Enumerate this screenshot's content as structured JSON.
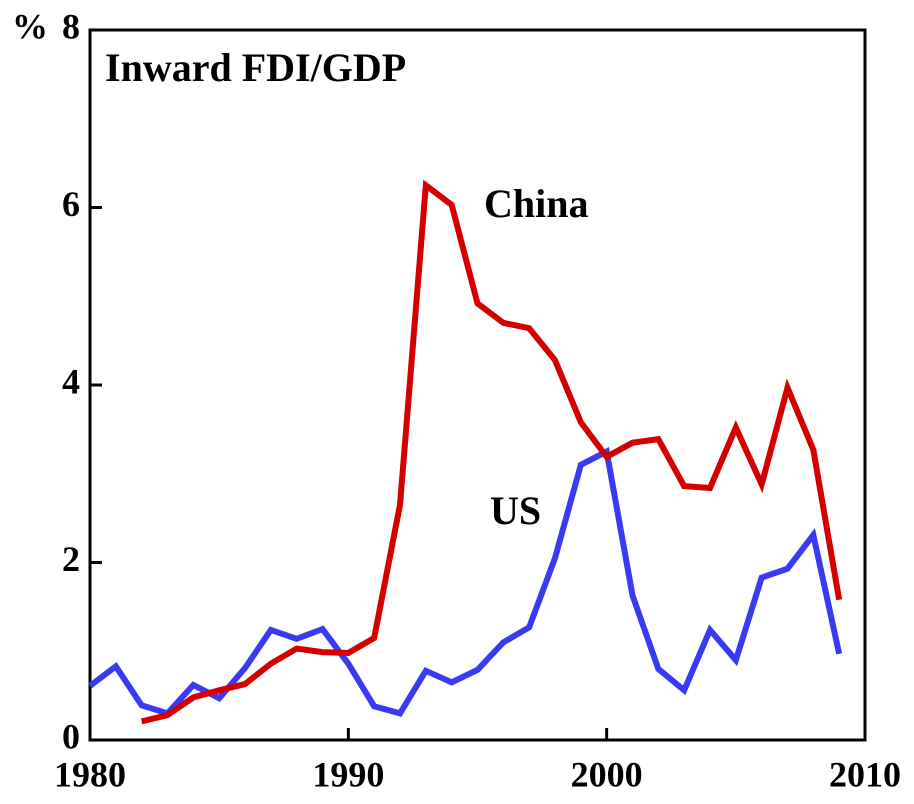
{
  "chart_data": {
    "type": "line",
    "title": "Inward FDI/GDP",
    "y_label": "%",
    "annotations": [
      "China",
      "US"
    ],
    "x": [
      1980,
      1981,
      1982,
      1983,
      1984,
      1985,
      1986,
      1987,
      1988,
      1989,
      1990,
      1991,
      1992,
      1993,
      1994,
      1995,
      1996,
      1997,
      1998,
      1999,
      2000,
      2001,
      2002,
      2003,
      2004,
      2005,
      2006,
      2007,
      2008,
      2009
    ],
    "series": [
      {
        "name": "US",
        "color": "#3a3af5",
        "values": [
          0.61,
          0.83,
          0.39,
          0.3,
          0.62,
          0.47,
          0.81,
          1.24,
          1.14,
          1.25,
          0.86,
          0.38,
          0.3,
          0.78,
          0.65,
          0.79,
          1.1,
          1.27,
          2.05,
          3.1,
          3.25,
          1.63,
          0.8,
          0.56,
          1.24,
          0.9,
          1.83,
          1.93,
          2.31,
          0.97
        ]
      },
      {
        "name": "China",
        "color": "#d40000",
        "values": [
          null,
          null,
          0.21,
          0.28,
          0.48,
          0.56,
          0.63,
          0.86,
          1.03,
          0.99,
          0.98,
          1.15,
          2.65,
          6.25,
          6.03,
          4.92,
          4.7,
          4.64,
          4.28,
          3.58,
          3.19,
          3.35,
          3.39,
          2.86,
          2.84,
          3.52,
          2.88,
          3.97,
          3.27,
          1.58
        ]
      }
    ],
    "xlim": [
      1980,
      2010
    ],
    "xticks": [
      1980,
      1990,
      2000,
      2010
    ],
    "ylim": [
      0,
      8
    ],
    "yticks": [
      0,
      2,
      4,
      6,
      8
    ]
  }
}
